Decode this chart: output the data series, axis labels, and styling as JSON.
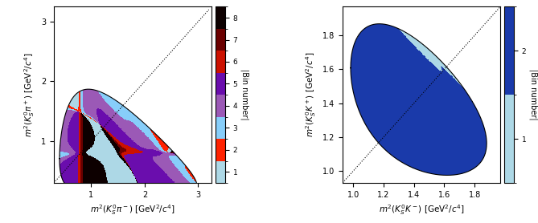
{
  "plot1": {
    "xlabel": "$m^2(K^0_S\\pi^-)$ [GeV$^2/c^4$]",
    "ylabel": "$m^2(K^0_S\\pi^+)$ [GeV$^2/c^4$]",
    "xlim": [
      0.3,
      3.25
    ],
    "ylim": [
      0.3,
      3.25
    ],
    "colorbar_label": "|Bin number|",
    "colorbar_ticks": [
      1,
      2,
      3,
      4,
      5,
      6,
      7,
      8
    ],
    "mD": 1.8648,
    "mKs": 0.4977,
    "mpi": 0.1396,
    "n_bins": 8,
    "cmap_colors": [
      "#add8e6",
      "#ff0000",
      "#87cefa",
      "#9b59b6",
      "#6a0dad",
      "#c0392b",
      "#7b0000",
      "#100000"
    ],
    "background_color": "white"
  },
  "plot2": {
    "xlabel": "$m^2(K^0_SK^-)$ [GeV$^2/c^4$]",
    "ylabel": "$m^2(K^0_SK^+)$ [GeV$^2/c^4$]",
    "xlim": [
      0.93,
      1.97
    ],
    "ylim": [
      0.93,
      1.97
    ],
    "colorbar_label": "|Bin number|",
    "colorbar_ticks": [
      1,
      2
    ],
    "mD": 1.8648,
    "mKs": 0.4977,
    "mK": 0.4937,
    "n_bins": 2,
    "cmap_colors": [
      "#add8e6",
      "#00008b"
    ],
    "background_color": "white"
  }
}
